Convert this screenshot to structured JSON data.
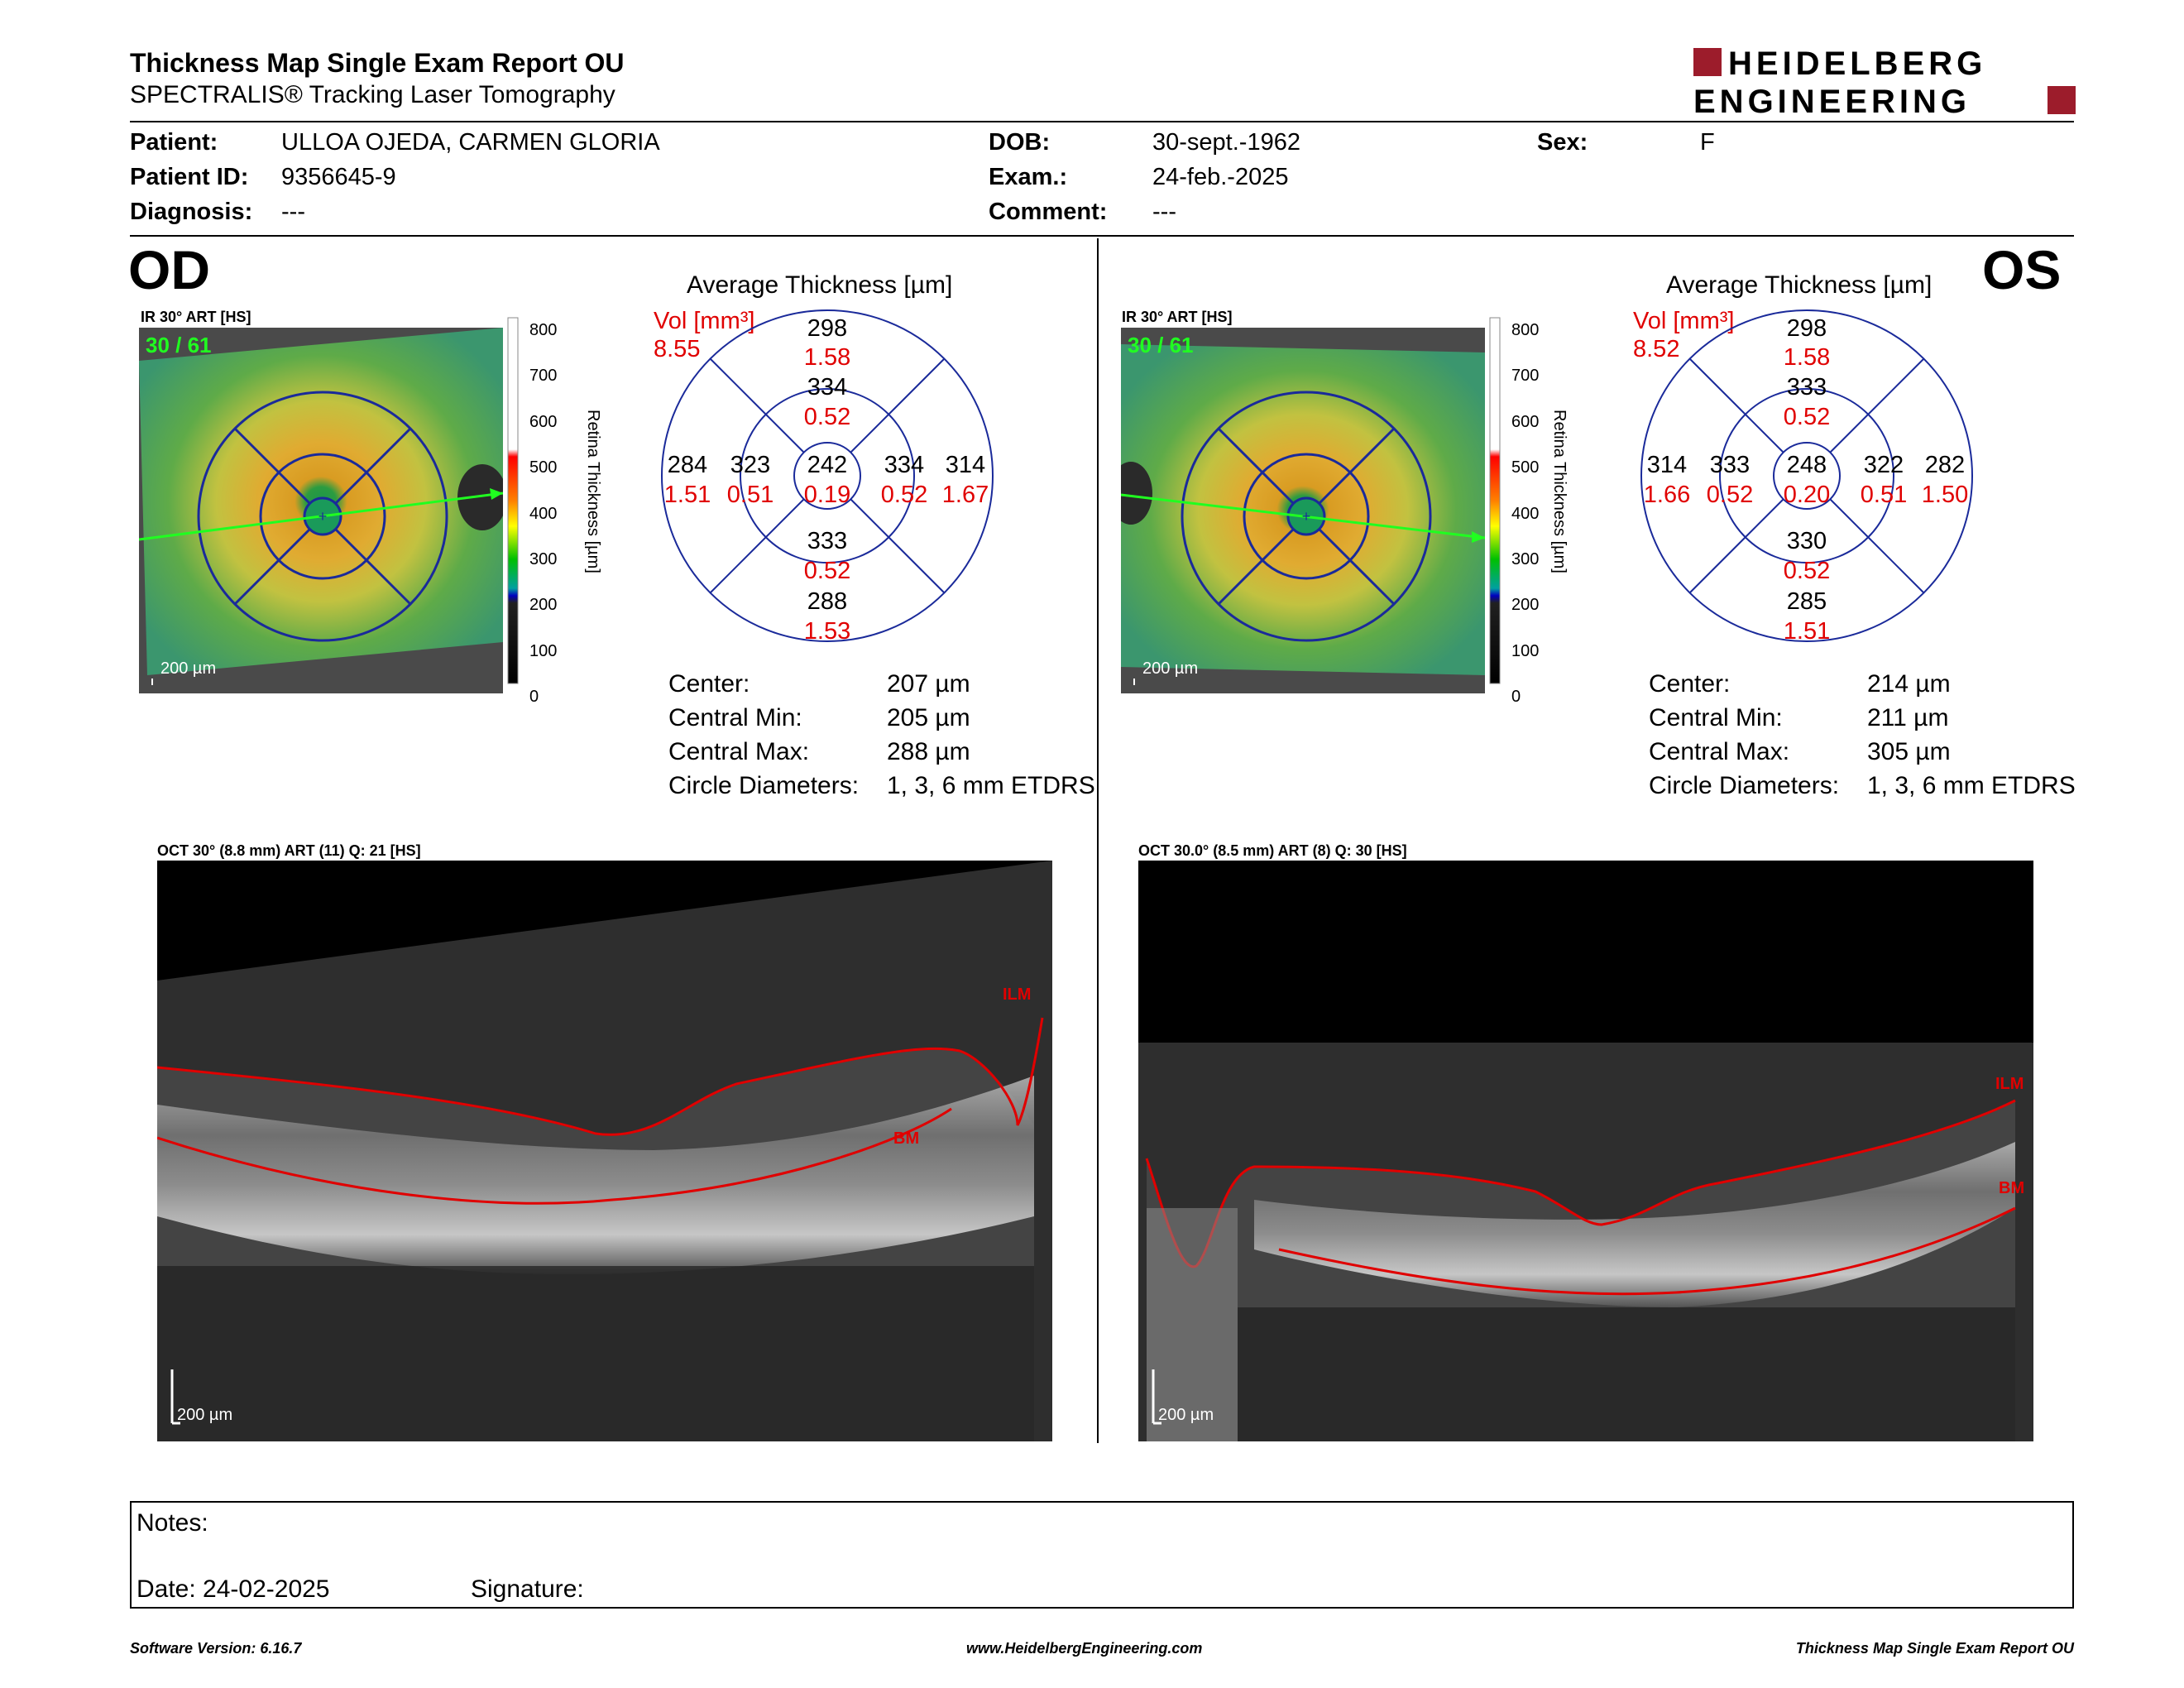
{
  "header": {
    "title": "Thickness Map Single Exam Report OU",
    "subtitle": "SPECTRALIS® Tracking Laser Tomography",
    "logo_line1": "HEIDELBERG",
    "logo_line2": "ENGINEERING"
  },
  "patient": {
    "patient_label": "Patient:",
    "patient_value": "ULLOA OJEDA, CARMEN GLORIA",
    "id_label": "Patient ID:",
    "id_value": "9356645-9",
    "diag_label": "Diagnosis:",
    "diag_value": "---",
    "dob_label": "DOB:",
    "dob_value": "30-sept.-1962",
    "exam_label": "Exam.:",
    "exam_value": "24-feb.-2025",
    "comment_label": "Comment:",
    "comment_value": "---",
    "sex_label": "Sex:",
    "sex_value": "F"
  },
  "od": {
    "eye": "OD",
    "ir_label": "IR 30° ART [HS]",
    "frame_count": "30 / 61",
    "scale": "200 µm",
    "avg_title": "Average Thickness [µm]",
    "vol_label": "Vol [mm³]",
    "vol_value": "8.55",
    "grid": {
      "center": {
        "t": "242",
        "v": "0.19"
      },
      "inner_sup": {
        "t": "334",
        "v": "0.52"
      },
      "inner_inf": {
        "t": "333",
        "v": "0.52"
      },
      "inner_left": {
        "t": "323",
        "v": "0.51"
      },
      "inner_right": {
        "t": "334",
        "v": "0.52"
      },
      "outer_sup": {
        "t": "298",
        "v": "1.58"
      },
      "outer_inf": {
        "t": "288",
        "v": "1.53"
      },
      "outer_left": {
        "t": "284",
        "v": "1.51"
      },
      "outer_right": {
        "t": "314",
        "v": "1.67"
      }
    },
    "stats": {
      "center_label": "Center:",
      "center_value": "207 µm",
      "min_label": "Central Min:",
      "min_value": "205 µm",
      "max_label": "Central Max:",
      "max_value": "288 µm",
      "diam_label": "Circle Diameters:",
      "diam_value": "1, 3, 6 mm ETDRS"
    },
    "oct_label": "OCT 30° (8.8 mm) ART (11) Q: 21 [HS]",
    "ilm": "ILM",
    "bm": "BM"
  },
  "os": {
    "eye": "OS",
    "ir_label": "IR 30° ART [HS]",
    "frame_count": "30 / 61",
    "scale": "200 µm",
    "avg_title": "Average Thickness [µm]",
    "vol_label": "Vol [mm³]",
    "vol_value": "8.52",
    "grid": {
      "center": {
        "t": "248",
        "v": "0.20"
      },
      "inner_sup": {
        "t": "333",
        "v": "0.52"
      },
      "inner_inf": {
        "t": "330",
        "v": "0.52"
      },
      "inner_left": {
        "t": "333",
        "v": "0.52"
      },
      "inner_right": {
        "t": "322",
        "v": "0.51"
      },
      "outer_sup": {
        "t": "298",
        "v": "1.58"
      },
      "outer_inf": {
        "t": "285",
        "v": "1.51"
      },
      "outer_left": {
        "t": "314",
        "v": "1.66"
      },
      "outer_right": {
        "t": "282",
        "v": "1.50"
      }
    },
    "stats": {
      "center_label": "Center:",
      "center_value": "214 µm",
      "min_label": "Central Min:",
      "min_value": "211 µm",
      "max_label": "Central Max:",
      "max_value": "305 µm",
      "diam_label": "Circle Diameters:",
      "diam_value": "1, 3, 6 mm ETDRS"
    },
    "oct_label": "OCT 30.0° (8.5 mm) ART (8) Q: 30 [HS]",
    "ilm": "ILM",
    "bm": "BM"
  },
  "colorbar": {
    "ticks": [
      "800",
      "700",
      "600",
      "500",
      "400",
      "300",
      "200",
      "100",
      "0"
    ],
    "label": "Retina Thickness [µm]"
  },
  "notes": {
    "notes_label": "Notes:",
    "date_label": "Date: 24-02-2025",
    "signature_label": "Signature:"
  },
  "footer": {
    "version": "Software Version: 6.16.7",
    "url": "www.HeidelbergEngineering.com",
    "report": "Thickness Map Single Exam Report OU"
  },
  "colors": {
    "accent_red": "#e00000",
    "logo_red": "#9c1c2b",
    "grid_blue": "#1a2a9a"
  }
}
